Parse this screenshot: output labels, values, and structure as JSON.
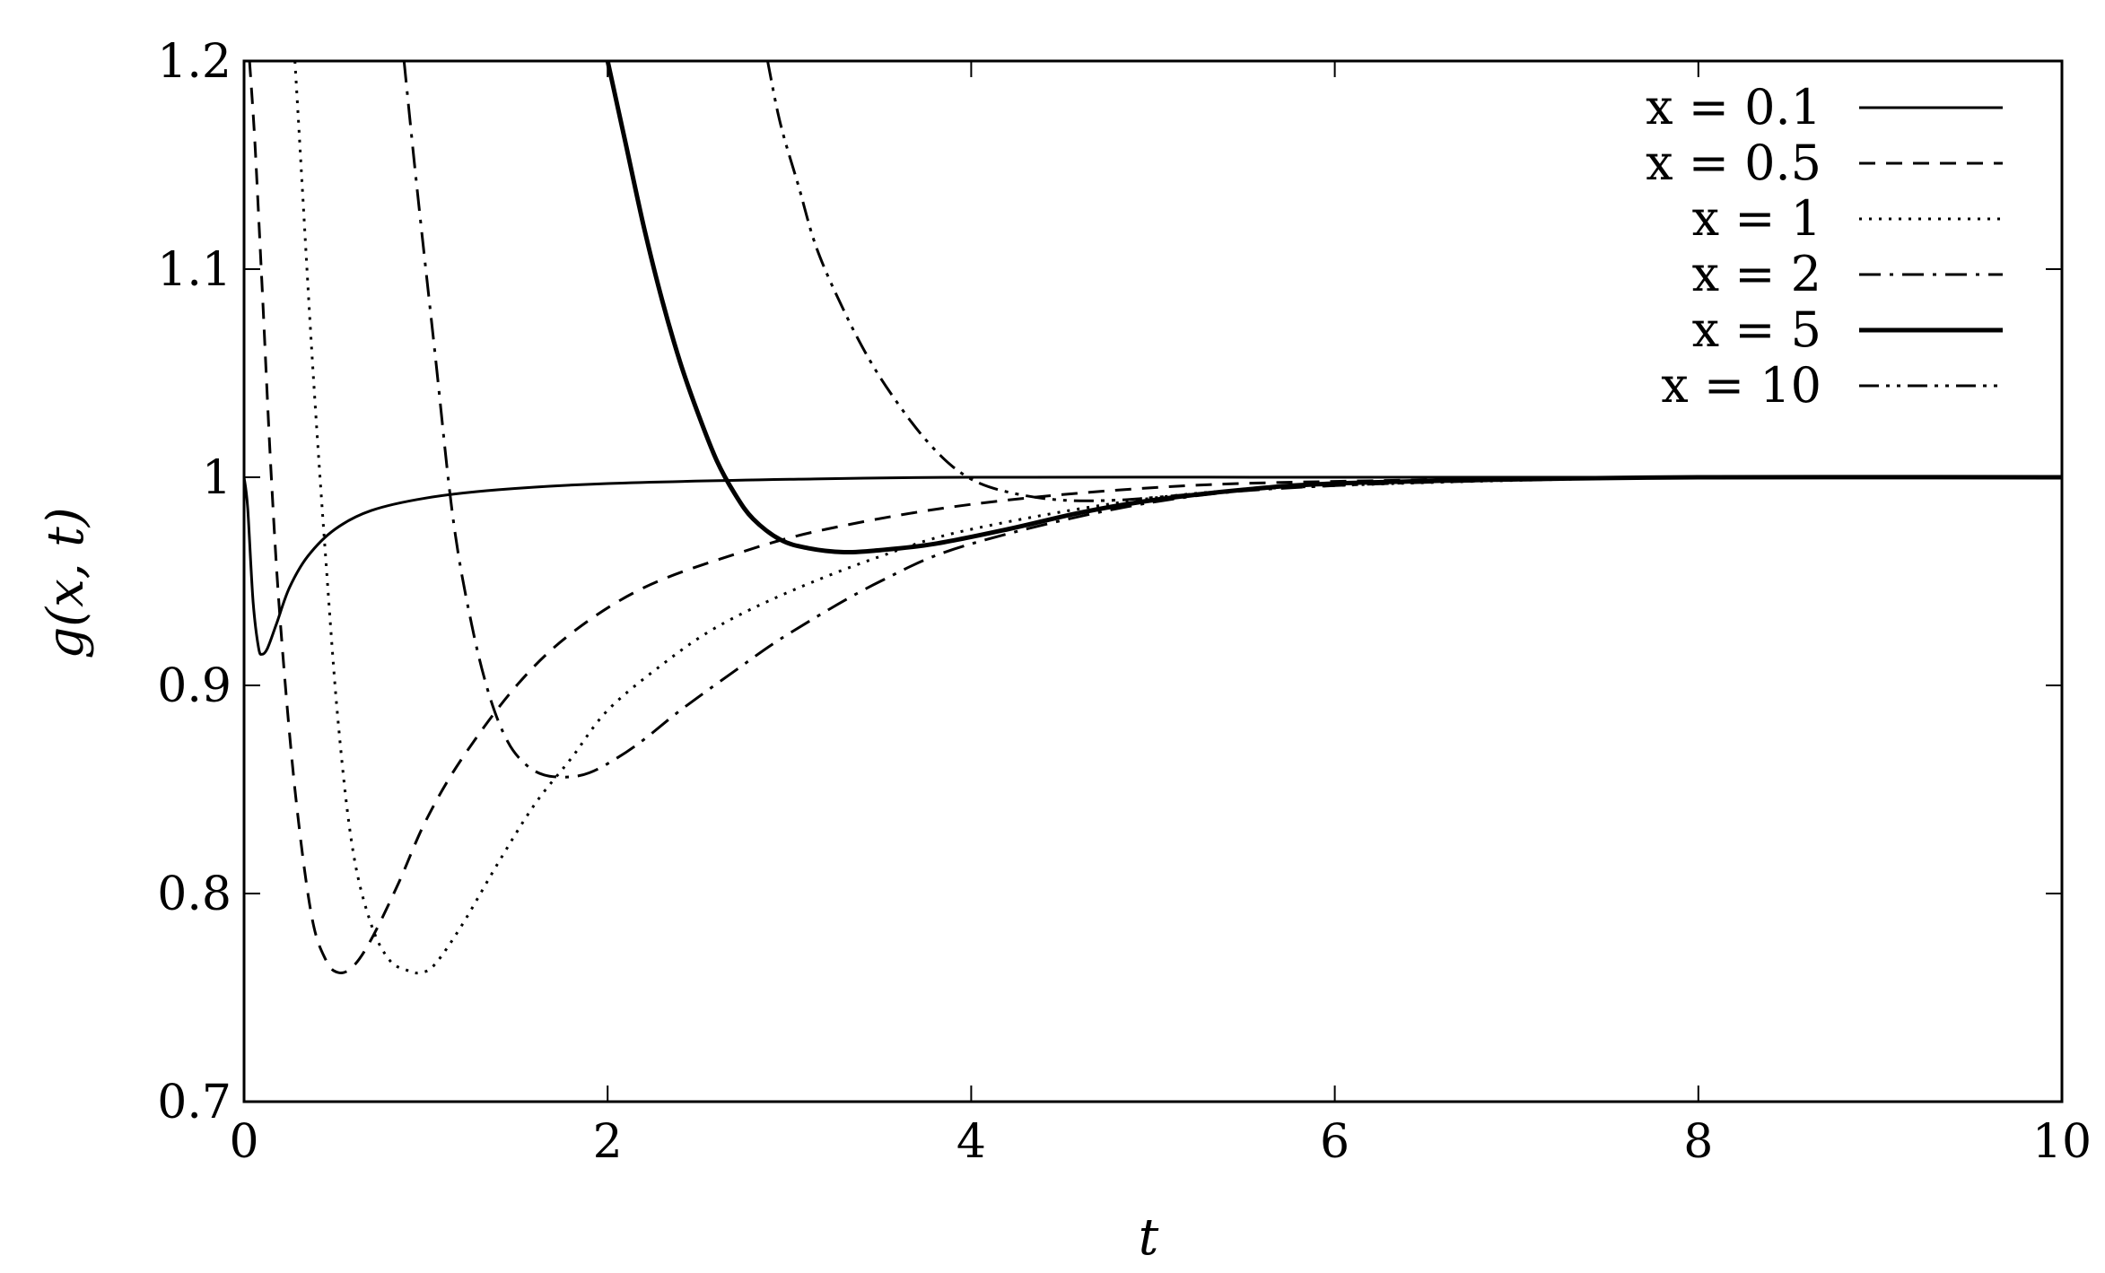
{
  "chart_data": {
    "type": "line",
    "title": "",
    "xlabel": "t",
    "ylabel": "g(x, t)",
    "xlim": [
      0,
      10
    ],
    "ylim": [
      0.7,
      1.2
    ],
    "x_ticks": [
      "0",
      "2",
      "4",
      "6",
      "8",
      "10"
    ],
    "y_ticks": [
      "0.7",
      "0.8",
      "0.9",
      "1",
      "1.1",
      "1.2"
    ],
    "grid": false,
    "legend_position": "top-right",
    "series": [
      {
        "name": "x = 0.1",
        "dash": "solid",
        "width": 3,
        "x": [
          0,
          0.02,
          0.05,
          0.08,
          0.1,
          0.13,
          0.18,
          0.25,
          0.35,
          0.5,
          0.7,
          1.0,
          1.4,
          2.0,
          3.0,
          4.0,
          6.0,
          8.0,
          10.0
        ],
        "y": [
          1.0,
          0.985,
          0.94,
          0.918,
          0.915,
          0.918,
          0.93,
          0.947,
          0.962,
          0.975,
          0.984,
          0.99,
          0.994,
          0.997,
          0.999,
          1.0,
          1.0,
          1.0,
          1.0
        ]
      },
      {
        "name": "x = 0.5",
        "dash": "short-dash",
        "width": 3,
        "x": [
          0.03,
          0.06,
          0.1,
          0.15,
          0.2,
          0.28,
          0.37,
          0.45,
          0.52,
          0.6,
          0.7,
          0.85,
          1.0,
          1.2,
          1.5,
          1.8,
          2.2,
          2.7,
          3.2,
          4.0,
          5.0,
          6.0,
          8.0,
          10.0
        ],
        "y": [
          1.2,
          1.16,
          1.09,
          1.0,
          0.93,
          0.85,
          0.79,
          0.768,
          0.762,
          0.765,
          0.778,
          0.805,
          0.835,
          0.865,
          0.9,
          0.925,
          0.947,
          0.963,
          0.975,
          0.987,
          0.995,
          0.998,
          1.0,
          1.0
        ]
      },
      {
        "name": "x = 1",
        "dash": "dotted",
        "width": 3,
        "x": [
          0.28,
          0.32,
          0.38,
          0.45,
          0.52,
          0.6,
          0.7,
          0.8,
          0.9,
          0.97,
          1.05,
          1.2,
          1.4,
          1.6,
          1.8,
          2.0,
          2.3,
          2.6,
          3.0,
          3.5,
          4.0,
          5.0,
          6.0,
          8.0,
          10.0
        ],
        "y": [
          1.2,
          1.14,
          1.05,
          0.96,
          0.88,
          0.82,
          0.785,
          0.768,
          0.763,
          0.762,
          0.766,
          0.785,
          0.815,
          0.843,
          0.865,
          0.888,
          0.91,
          0.928,
          0.945,
          0.962,
          0.975,
          0.99,
          0.996,
          1.0,
          1.0
        ]
      },
      {
        "name": "x = 2",
        "dash": "dash-dot",
        "width": 3,
        "x": [
          0.88,
          0.95,
          1.05,
          1.15,
          1.25,
          1.35,
          1.45,
          1.55,
          1.65,
          1.78,
          1.9,
          2.05,
          2.2,
          2.4,
          2.7,
          3.0,
          3.5,
          4.0,
          5.0,
          6.0,
          8.0,
          10.0
        ],
        "y": [
          1.2,
          1.14,
          1.06,
          0.98,
          0.93,
          0.895,
          0.873,
          0.862,
          0.857,
          0.856,
          0.858,
          0.865,
          0.874,
          0.888,
          0.907,
          0.925,
          0.95,
          0.968,
          0.988,
          0.996,
          1.0,
          1.0
        ]
      },
      {
        "name": "x = 5",
        "dash": "solid",
        "width": 5,
        "x": [
          2.0,
          2.1,
          2.2,
          2.3,
          2.4,
          2.5,
          2.6,
          2.7,
          2.8,
          2.95,
          3.1,
          3.3,
          3.5,
          3.8,
          4.2,
          4.6,
          5.0,
          5.5,
          6.0,
          7.0,
          8.0,
          10.0
        ],
        "y": [
          1.2,
          1.16,
          1.12,
          1.085,
          1.055,
          1.03,
          1.008,
          0.992,
          0.98,
          0.97,
          0.966,
          0.964,
          0.965,
          0.968,
          0.975,
          0.983,
          0.989,
          0.994,
          0.997,
          0.999,
          1.0,
          1.0
        ]
      },
      {
        "name": "x = 10",
        "dash": "dash-dot-dot",
        "width": 3,
        "x": [
          2.88,
          2.95,
          3.05,
          3.15,
          3.3,
          3.45,
          3.6,
          3.75,
          3.9,
          4.05,
          4.25,
          4.5,
          4.8,
          5.1,
          5.5,
          6.0,
          7.0,
          8.0,
          10.0
        ],
        "y": [
          1.2,
          1.17,
          1.14,
          1.11,
          1.08,
          1.055,
          1.035,
          1.018,
          1.005,
          0.997,
          0.992,
          0.989,
          0.989,
          0.991,
          0.994,
          0.997,
          0.999,
          1.0,
          1.0
        ]
      }
    ]
  }
}
